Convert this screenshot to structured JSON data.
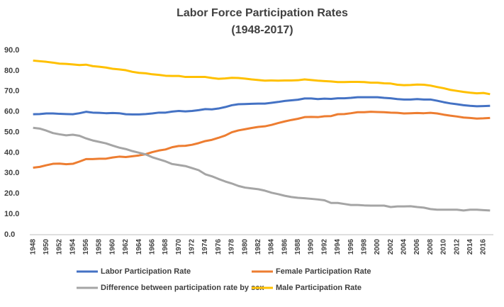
{
  "chart_data": {
    "type": "line",
    "title": "Labor Force Participation Rates",
    "subtitle": "(1948-2017)",
    "categories": [
      1948,
      null,
      1950,
      null,
      1952,
      null,
      1954,
      null,
      1956,
      null,
      1958,
      null,
      1960,
      null,
      1962,
      null,
      1964,
      null,
      1966,
      null,
      1968,
      null,
      1970,
      null,
      1972,
      null,
      1974,
      null,
      1976,
      null,
      1978,
      null,
      1980,
      null,
      1982,
      null,
      1984,
      null,
      1986,
      null,
      1988,
      null,
      1990,
      null,
      1992,
      null,
      1994,
      null,
      1996,
      null,
      1998,
      null,
      2000,
      null,
      2002,
      null,
      2004,
      null,
      2006,
      null,
      2008,
      null,
      2010,
      null,
      2012,
      null,
      2014,
      null,
      2016,
      null
    ],
    "ylim": [
      0,
      90
    ],
    "yticks": [
      {
        "value": 0,
        "label": "0.0"
      },
      {
        "value": 10,
        "label": "10.0"
      },
      {
        "value": 20,
        "label": "20.0"
      },
      {
        "value": 30,
        "label": "30.0"
      },
      {
        "value": 40,
        "label": "40.0"
      },
      {
        "value": 50,
        "label": "50.0"
      },
      {
        "value": 60,
        "label": "60.0"
      },
      {
        "value": 70,
        "label": "70.0"
      },
      {
        "value": 80,
        "label": "80.0"
      },
      {
        "value": 90,
        "label": "90.0"
      }
    ],
    "series": [
      {
        "name": "Labor Participation Rate",
        "color": "#4472c4",
        "values": [
          58.8,
          58.9,
          59.2,
          59.2,
          59.0,
          58.9,
          58.8,
          59.3,
          60.0,
          59.6,
          59.5,
          59.3,
          59.4,
          59.3,
          58.8,
          58.7,
          58.7,
          58.9,
          59.2,
          59.6,
          59.6,
          60.1,
          60.4,
          60.2,
          60.4,
          60.8,
          61.3,
          61.2,
          61.6,
          62.3,
          63.2,
          63.7,
          63.8,
          63.9,
          64.0,
          64.0,
          64.4,
          64.8,
          65.3,
          65.6,
          65.9,
          66.5,
          66.5,
          66.2,
          66.4,
          66.3,
          66.6,
          66.6,
          66.8,
          67.1,
          67.1,
          67.1,
          67.1,
          66.8,
          66.6,
          66.2,
          66.0,
          66.0,
          66.2,
          66.0,
          66.0,
          65.4,
          64.7,
          64.1,
          63.7,
          63.2,
          62.9,
          62.7,
          62.8,
          62.9
        ]
      },
      {
        "name": "Female Participation Rate",
        "color": "#ed7d31",
        "values": [
          32.7,
          33.1,
          33.9,
          34.6,
          34.7,
          34.4,
          34.6,
          35.7,
          36.9,
          36.9,
          37.1,
          37.1,
          37.7,
          38.1,
          37.9,
          38.3,
          38.7,
          39.3,
          40.3,
          41.1,
          41.6,
          42.7,
          43.3,
          43.4,
          43.9,
          44.7,
          45.7,
          46.3,
          47.3,
          48.4,
          50.0,
          50.9,
          51.5,
          52.1,
          52.6,
          52.9,
          53.6,
          54.5,
          55.3,
          56.0,
          56.6,
          57.4,
          57.5,
          57.4,
          57.8,
          57.9,
          58.8,
          58.9,
          59.3,
          59.8,
          59.8,
          60.0,
          59.9,
          59.8,
          59.6,
          59.5,
          59.2,
          59.3,
          59.4,
          59.3,
          59.5,
          59.2,
          58.6,
          58.1,
          57.7,
          57.2,
          57.0,
          56.7,
          56.8,
          57.0
        ]
      },
      {
        "name": "Difference between participation rate by sex",
        "color": "#a5a5a5",
        "values": [
          52.2,
          51.8,
          50.8,
          49.6,
          49.0,
          48.5,
          48.8,
          48.3,
          47.0,
          46.0,
          45.3,
          44.6,
          43.5,
          42.5,
          41.8,
          40.8,
          40.0,
          39.2,
          37.8,
          36.8,
          35.8,
          34.5,
          34.0,
          33.5,
          32.5,
          31.5,
          29.5,
          28.5,
          27.2,
          26.0,
          25.0,
          23.8,
          23.0,
          22.6,
          22.2,
          21.5,
          20.5,
          19.8,
          19.0,
          18.4,
          18.0,
          17.8,
          17.5,
          17.2,
          16.8,
          15.5,
          15.5,
          15.0,
          14.5,
          14.5,
          14.3,
          14.2,
          14.2,
          14.2,
          13.5,
          13.8,
          13.8,
          13.9,
          13.5,
          13.2,
          12.5,
          12.2,
          12.2,
          12.2,
          12.2,
          11.8,
          12.2,
          12.2,
          12.0,
          11.8
        ]
      },
      {
        "name": "Male Participation Rate",
        "color": "#ffc000",
        "values": [
          85.0,
          84.7,
          84.4,
          84.0,
          83.5,
          83.4,
          83.1,
          82.8,
          83.0,
          82.3,
          82.0,
          81.6,
          81.0,
          80.7,
          80.3,
          79.5,
          79.0,
          78.8,
          78.3,
          78.0,
          77.6,
          77.5,
          77.5,
          77.0,
          77.0,
          77.0,
          77.0,
          76.5,
          76.1,
          76.3,
          76.6,
          76.5,
          76.2,
          75.8,
          75.5,
          75.2,
          75.3,
          75.2,
          75.3,
          75.3,
          75.4,
          75.8,
          75.5,
          75.2,
          75.0,
          74.8,
          74.5,
          74.5,
          74.6,
          74.6,
          74.5,
          74.2,
          74.2,
          73.9,
          73.8,
          73.2,
          73.0,
          73.1,
          73.3,
          73.2,
          72.8,
          72.1,
          71.5,
          70.7,
          70.2,
          69.7,
          69.3,
          69.0,
          69.2,
          68.6
        ]
      }
    ]
  }
}
